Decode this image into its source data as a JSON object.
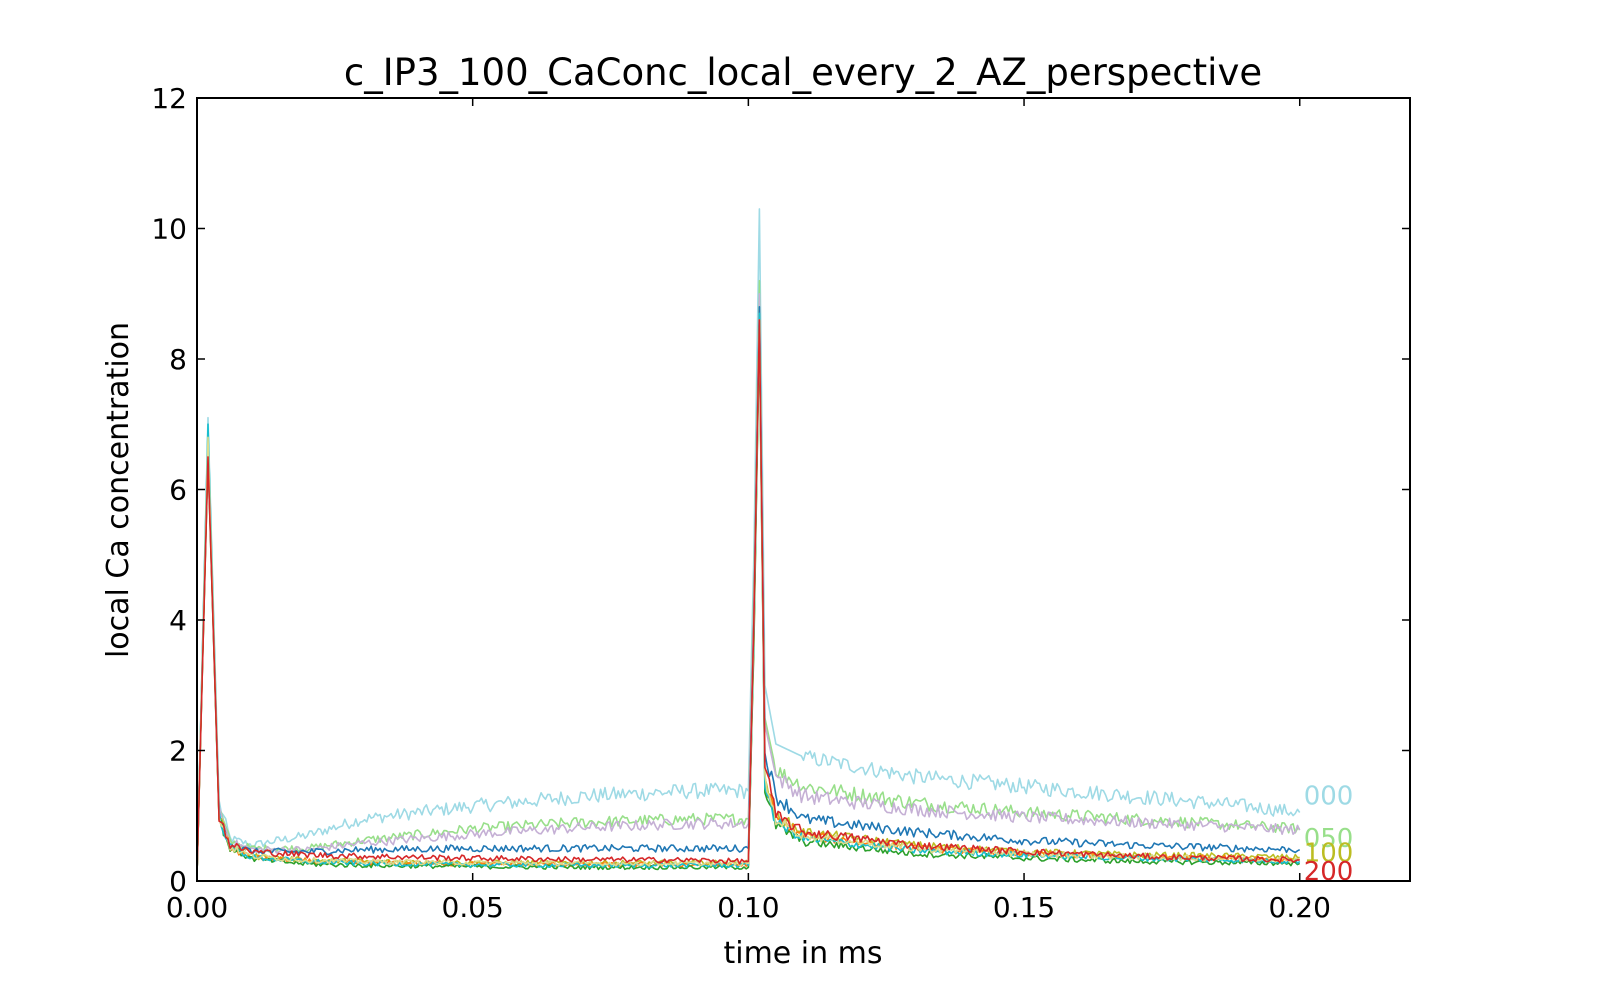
{
  "chart_data": {
    "type": "line",
    "title": "c_IP3_100_CaConc_local_every_2_AZ_perspective",
    "xlabel": "time in ms",
    "ylabel": "local Ca concentration",
    "xlim": [
      0.0,
      0.22
    ],
    "ylim": [
      0,
      12
    ],
    "xticks": [
      "0.00",
      "0.05",
      "0.10",
      "0.15",
      "0.20"
    ],
    "yticks": [
      "0",
      "2",
      "4",
      "6",
      "8",
      "10",
      "12"
    ],
    "grid": false,
    "legend": "none",
    "series": [
      {
        "color": "#9edae5",
        "end_label": "000",
        "x": [
          0.0,
          0.002,
          0.004,
          0.006,
          0.01,
          0.02,
          0.03,
          0.05,
          0.07,
          0.09,
          0.1,
          0.101,
          0.102,
          0.103,
          0.105,
          0.11,
          0.13,
          0.15,
          0.17,
          0.19,
          0.2
        ],
        "y": [
          0.1,
          7.1,
          1.2,
          0.65,
          0.55,
          0.7,
          0.95,
          1.15,
          1.3,
          1.38,
          1.38,
          5.0,
          10.3,
          3.0,
          2.1,
          1.9,
          1.6,
          1.45,
          1.3,
          1.15,
          1.05
        ]
      },
      {
        "color": "#98df8a",
        "end_label": "050",
        "x": [
          0.0,
          0.002,
          0.004,
          0.006,
          0.01,
          0.02,
          0.03,
          0.05,
          0.07,
          0.09,
          0.1,
          0.101,
          0.102,
          0.103,
          0.105,
          0.11,
          0.13,
          0.15,
          0.17,
          0.19,
          0.2
        ],
        "y": [
          0.1,
          6.9,
          1.1,
          0.6,
          0.5,
          0.5,
          0.62,
          0.8,
          0.9,
          0.95,
          0.95,
          4.5,
          9.2,
          2.5,
          1.7,
          1.45,
          1.2,
          1.05,
          0.95,
          0.85,
          0.8
        ]
      },
      {
        "color": "#c5b0d5",
        "end_label": "",
        "x": [
          0.0,
          0.002,
          0.004,
          0.006,
          0.01,
          0.02,
          0.03,
          0.05,
          0.07,
          0.09,
          0.1,
          0.101,
          0.102,
          0.103,
          0.105,
          0.11,
          0.13,
          0.15,
          0.17,
          0.19,
          0.2
        ],
        "y": [
          0.1,
          6.8,
          1.1,
          0.6,
          0.48,
          0.48,
          0.58,
          0.72,
          0.82,
          0.88,
          0.88,
          4.3,
          9.0,
          2.4,
          1.6,
          1.3,
          1.1,
          0.98,
          0.9,
          0.82,
          0.78
        ]
      },
      {
        "color": "#1f77b4",
        "end_label": "",
        "x": [
          0.0,
          0.002,
          0.004,
          0.006,
          0.01,
          0.02,
          0.03,
          0.05,
          0.07,
          0.09,
          0.1,
          0.101,
          0.102,
          0.103,
          0.105,
          0.11,
          0.13,
          0.15,
          0.17,
          0.19,
          0.2
        ],
        "y": [
          0.1,
          6.7,
          1.0,
          0.55,
          0.45,
          0.45,
          0.48,
          0.5,
          0.5,
          0.5,
          0.5,
          4.0,
          8.8,
          2.0,
          1.3,
          0.95,
          0.75,
          0.62,
          0.55,
          0.5,
          0.48
        ]
      },
      {
        "color": "#bcbd22",
        "end_label": "100",
        "x": [
          0.0,
          0.002,
          0.004,
          0.006,
          0.01,
          0.02,
          0.03,
          0.05,
          0.07,
          0.09,
          0.1,
          0.101,
          0.102,
          0.103,
          0.105,
          0.11,
          0.13,
          0.15,
          0.17,
          0.19,
          0.2
        ],
        "y": [
          0.1,
          6.6,
          1.0,
          0.5,
          0.38,
          0.32,
          0.3,
          0.28,
          0.28,
          0.28,
          0.28,
          3.8,
          8.6,
          1.6,
          1.0,
          0.75,
          0.55,
          0.45,
          0.4,
          0.38,
          0.36
        ]
      },
      {
        "color": "#ff7f0e",
        "end_label": "",
        "x": [
          0.0,
          0.002,
          0.004,
          0.006,
          0.01,
          0.02,
          0.03,
          0.05,
          0.07,
          0.09,
          0.1,
          0.101,
          0.102,
          0.103,
          0.105,
          0.11,
          0.13,
          0.15,
          0.17,
          0.19,
          0.2
        ],
        "y": [
          0.1,
          6.6,
          1.0,
          0.5,
          0.36,
          0.3,
          0.28,
          0.26,
          0.25,
          0.25,
          0.25,
          3.7,
          8.5,
          1.5,
          0.95,
          0.7,
          0.5,
          0.42,
          0.37,
          0.35,
          0.33
        ]
      },
      {
        "color": "#2ca02c",
        "end_label": "",
        "x": [
          0.0,
          0.002,
          0.004,
          0.006,
          0.01,
          0.02,
          0.03,
          0.05,
          0.07,
          0.09,
          0.1,
          0.101,
          0.102,
          0.103,
          0.105,
          0.11,
          0.13,
          0.15,
          0.17,
          0.19,
          0.2
        ],
        "y": [
          0.1,
          6.5,
          0.95,
          0.5,
          0.34,
          0.26,
          0.24,
          0.22,
          0.21,
          0.21,
          0.21,
          3.6,
          8.4,
          1.4,
          0.85,
          0.6,
          0.42,
          0.35,
          0.3,
          0.28,
          0.27
        ]
      },
      {
        "color": "#17becf",
        "end_label": "",
        "x": [
          0.0,
          0.002,
          0.004,
          0.006,
          0.01,
          0.02,
          0.03,
          0.05,
          0.07,
          0.09,
          0.1,
          0.101,
          0.102,
          0.103,
          0.105,
          0.11,
          0.13,
          0.15,
          0.17,
          0.19,
          0.2
        ],
        "y": [
          0.1,
          7.0,
          1.0,
          0.52,
          0.36,
          0.3,
          0.27,
          0.25,
          0.24,
          0.24,
          0.24,
          3.8,
          8.7,
          1.5,
          0.9,
          0.65,
          0.47,
          0.4,
          0.35,
          0.32,
          0.3
        ]
      },
      {
        "color": "#dbdb8d",
        "end_label": "",
        "x": [
          0.0,
          0.002,
          0.004,
          0.006,
          0.01,
          0.02,
          0.03,
          0.05,
          0.07,
          0.09,
          0.1,
          0.101,
          0.102,
          0.103,
          0.105,
          0.11,
          0.13,
          0.15,
          0.17,
          0.19,
          0.2
        ],
        "y": [
          0.1,
          6.8,
          1.0,
          0.52,
          0.38,
          0.32,
          0.3,
          0.28,
          0.27,
          0.27,
          0.27,
          3.9,
          8.6,
          1.55,
          0.95,
          0.7,
          0.5,
          0.42,
          0.37,
          0.34,
          0.33
        ]
      },
      {
        "color": "#d62728",
        "end_label": "200",
        "x": [
          0.0,
          0.002,
          0.004,
          0.006,
          0.01,
          0.02,
          0.03,
          0.05,
          0.07,
          0.09,
          0.1,
          0.101,
          0.102,
          0.103,
          0.105,
          0.11,
          0.13,
          0.15,
          0.17,
          0.19,
          0.2
        ],
        "y": [
          0.1,
          6.5,
          1.0,
          0.55,
          0.45,
          0.4,
          0.38,
          0.35,
          0.33,
          0.32,
          0.3,
          4.0,
          8.6,
          1.8,
          1.0,
          0.75,
          0.55,
          0.45,
          0.38,
          0.34,
          0.32
        ]
      }
    ]
  }
}
